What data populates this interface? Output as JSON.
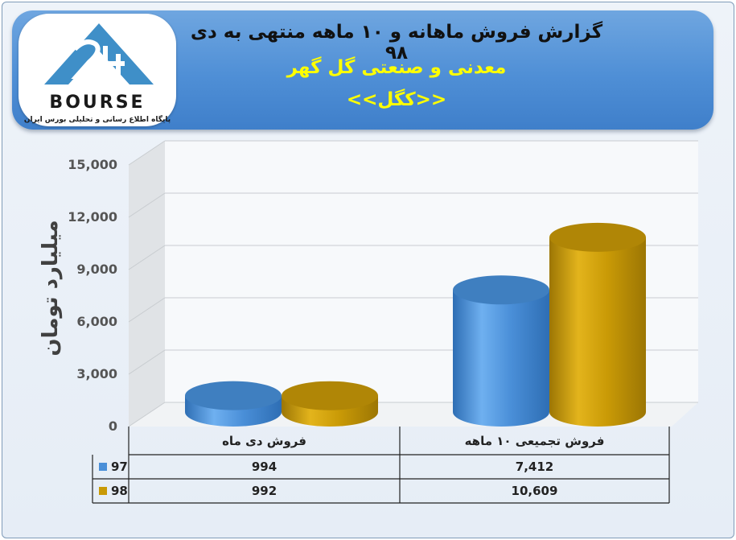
{
  "header": {
    "title_line1": "گزارش فروش ماهانه و ۱۰ ماهه منتهی به دی ۹۸",
    "title_line2": "معدنی و صنعتی گل گهر",
    "title_line3": "<<کگل>>"
  },
  "logo": {
    "wordmark": "BOURSE",
    "subtitle": "پایگاه اطلاع رسانی و تحلیلی بورس ایران"
  },
  "colors": {
    "series_97": "#4a8fd8",
    "series_98": "#c99a06",
    "banner": "#4f8fd6",
    "title_highlight": "#ffff00"
  },
  "chart_data": {
    "type": "bar",
    "categories": [
      "فروش  دی  ماه",
      "فروش تجمیعی ۱۰ ماهه"
    ],
    "series": [
      {
        "name": "97",
        "values": [
          994,
          7412
        ],
        "labels": [
          "994",
          "7,412"
        ]
      },
      {
        "name": "98",
        "values": [
          992,
          10609
        ],
        "labels": [
          "992",
          "10,609"
        ]
      }
    ],
    "ylabel": "میلیارد تومان",
    "ylim": [
      0,
      15000
    ],
    "yticks": [
      "0",
      "3,000",
      "6,000",
      "9,000",
      "12,000",
      "15,000"
    ],
    "ytick_values": [
      0,
      3000,
      6000,
      9000,
      12000,
      15000
    ],
    "grid": true,
    "legend": "data-table"
  }
}
